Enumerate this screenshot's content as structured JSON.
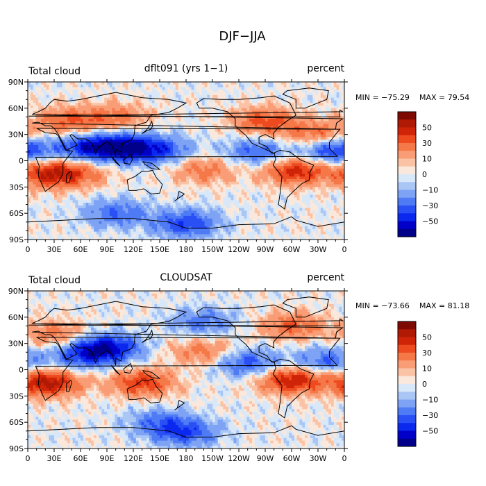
{
  "figure": {
    "title": "DJF−JJA"
  },
  "colorbar_levels": [
    -60,
    -50,
    -40,
    -30,
    -20,
    -10,
    -5,
    0,
    5,
    10,
    20,
    30,
    40,
    50,
    60
  ],
  "colorbar_colors": [
    "#00008a",
    "#0000c8",
    "#0a28ee",
    "#2a50f5",
    "#4f7bf5",
    "#7ea3f5",
    "#aac6f5",
    "#d8e8f8",
    "#fae8dc",
    "#fbc3a6",
    "#f99d76",
    "#f57849",
    "#ee4a20",
    "#cf2408",
    "#b01a05",
    "#7e0b03"
  ],
  "colorbar_ticks": [
    "50",
    "30",
    "10",
    "0",
    "−10",
    "−30",
    "−50"
  ],
  "x_ticks": [
    "0",
    "30E",
    "60E",
    "90E",
    "120E",
    "150E",
    "180",
    "150W",
    "120W",
    "90W",
    "60W",
    "30W",
    "0"
  ],
  "y_ticks": [
    "90N",
    "60N",
    "30N",
    "0",
    "30S",
    "60S",
    "90S"
  ],
  "panels": [
    {
      "left_label": "Total cloud",
      "center_label": "dflt091 (yrs 1−1)",
      "right_label": "percent",
      "min_label": "MIN = −75.29",
      "max_label": "MAX =  79.54"
    },
    {
      "left_label": "Total cloud",
      "center_label": "CLOUDSAT",
      "right_label": "percent",
      "min_label": "MIN = −73.66",
      "max_label": "MAX =  81.18"
    }
  ],
  "chart_data": [
    {
      "type": "heatmap",
      "title": "dflt091 (yrs 1−1)",
      "variable": "Total cloud",
      "units": "percent",
      "min": -75.29,
      "max": 79.54,
      "xlim": [
        0,
        360
      ],
      "ylim": [
        -90,
        90
      ],
      "x_ticks": [
        0,
        30,
        60,
        90,
        120,
        150,
        180,
        210,
        240,
        270,
        300,
        330,
        360
      ],
      "y_ticks": [
        90,
        60,
        30,
        0,
        -30,
        -60,
        -90
      ],
      "contour_levels": [
        -60,
        -50,
        -40,
        -30,
        -20,
        -10,
        -5,
        0,
        5,
        10,
        20,
        30,
        40,
        50,
        60
      ],
      "features": [
        {
          "lon": 45,
          "lat": 45,
          "value": 30
        },
        {
          "lon": 100,
          "lat": 50,
          "value": 25
        },
        {
          "lon": 270,
          "lat": 45,
          "value": 35
        },
        {
          "lon": 330,
          "lat": 30,
          "value": 30
        },
        {
          "lon": 25,
          "lat": -15,
          "value": 45
        },
        {
          "lon": 60,
          "lat": -15,
          "value": 20
        },
        {
          "lon": 305,
          "lat": -12,
          "value": 45
        },
        {
          "lon": 200,
          "lat": -10,
          "value": 25
        },
        {
          "lon": 70,
          "lat": 15,
          "value": -45
        },
        {
          "lon": 110,
          "lat": 15,
          "value": -50
        },
        {
          "lon": 150,
          "lat": 12,
          "value": -35
        },
        {
          "lon": 260,
          "lat": 10,
          "value": -30
        },
        {
          "lon": 350,
          "lat": 12,
          "value": -45
        },
        {
          "lon": 100,
          "lat": -60,
          "value": -30
        },
        {
          "lon": 180,
          "lat": -72,
          "value": -40
        }
      ]
    },
    {
      "type": "heatmap",
      "title": "CLOUDSAT",
      "variable": "Total cloud",
      "units": "percent",
      "min": -73.66,
      "max": 81.18,
      "xlim": [
        0,
        360
      ],
      "ylim": [
        -90,
        90
      ],
      "x_ticks": [
        0,
        30,
        60,
        90,
        120,
        150,
        180,
        210,
        240,
        270,
        300,
        330,
        360
      ],
      "y_ticks": [
        90,
        60,
        30,
        0,
        -30,
        -60,
        -90
      ],
      "contour_levels": [
        -60,
        -50,
        -40,
        -30,
        -20,
        -10,
        -5,
        0,
        5,
        10,
        20,
        30,
        40,
        50,
        60
      ],
      "features": [
        {
          "lon": 30,
          "lat": 40,
          "value": 25
        },
        {
          "lon": 300,
          "lat": 50,
          "value": 30
        },
        {
          "lon": 22,
          "lat": -15,
          "value": 55
        },
        {
          "lon": 130,
          "lat": -15,
          "value": 40
        },
        {
          "lon": 300,
          "lat": -12,
          "value": 50
        },
        {
          "lon": 200,
          "lat": 20,
          "value": 25
        },
        {
          "lon": 90,
          "lat": 25,
          "value": -55
        },
        {
          "lon": 60,
          "lat": 15,
          "value": -30
        },
        {
          "lon": 250,
          "lat": 8,
          "value": -35
        },
        {
          "lon": 340,
          "lat": 10,
          "value": -30
        },
        {
          "lon": 200,
          "lat": 55,
          "value": -25
        },
        {
          "lon": 150,
          "lat": -60,
          "value": -25
        },
        {
          "lon": 180,
          "lat": -72,
          "value": -35
        }
      ]
    }
  ]
}
